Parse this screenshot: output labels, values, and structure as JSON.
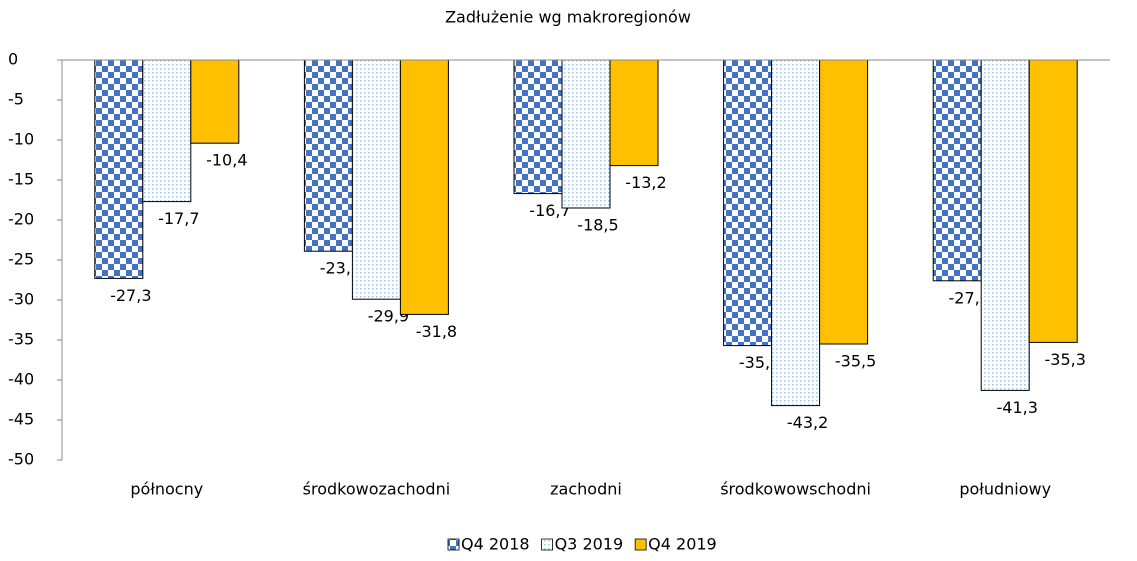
{
  "chart_data": {
    "type": "bar",
    "title": "Zadłużenie wg makroregionów",
    "categories": [
      "północny",
      "środkowozachodni",
      "zachodni",
      "środkowowschodni",
      "południowy"
    ],
    "series": [
      {
        "name": "Q4 2018",
        "color": "#4472c4",
        "pattern": "checker",
        "values": [
          -27.3,
          -23.9,
          -16.7,
          -35.7,
          -27.6
        ],
        "value_labels": [
          "-27,3",
          "-23,9",
          "-16,7",
          "-35,7",
          "-27,6"
        ]
      },
      {
        "name": "Q3 2019",
        "color": "#9dc3e6",
        "pattern": "dots",
        "values": [
          -17.7,
          -29.9,
          -18.5,
          -43.2,
          -41.3
        ],
        "value_labels": [
          "-17,7",
          "-29,9",
          "-18,5",
          "-43,2",
          "-41,3"
        ]
      },
      {
        "name": "Q4 2019",
        "color": "#ffc000",
        "pattern": "solid",
        "values": [
          -10.4,
          -31.8,
          -13.2,
          -35.5,
          -35.3
        ],
        "value_labels": [
          "-10,4",
          "-31,8",
          "-13,2",
          "-35,5",
          "-35,3"
        ]
      }
    ],
    "ylim": [
      -50,
      0
    ],
    "yticks": [
      0,
      -5,
      -10,
      -15,
      -20,
      -25,
      -30,
      -35,
      -40,
      -45,
      -50
    ],
    "legend": "bottom"
  }
}
